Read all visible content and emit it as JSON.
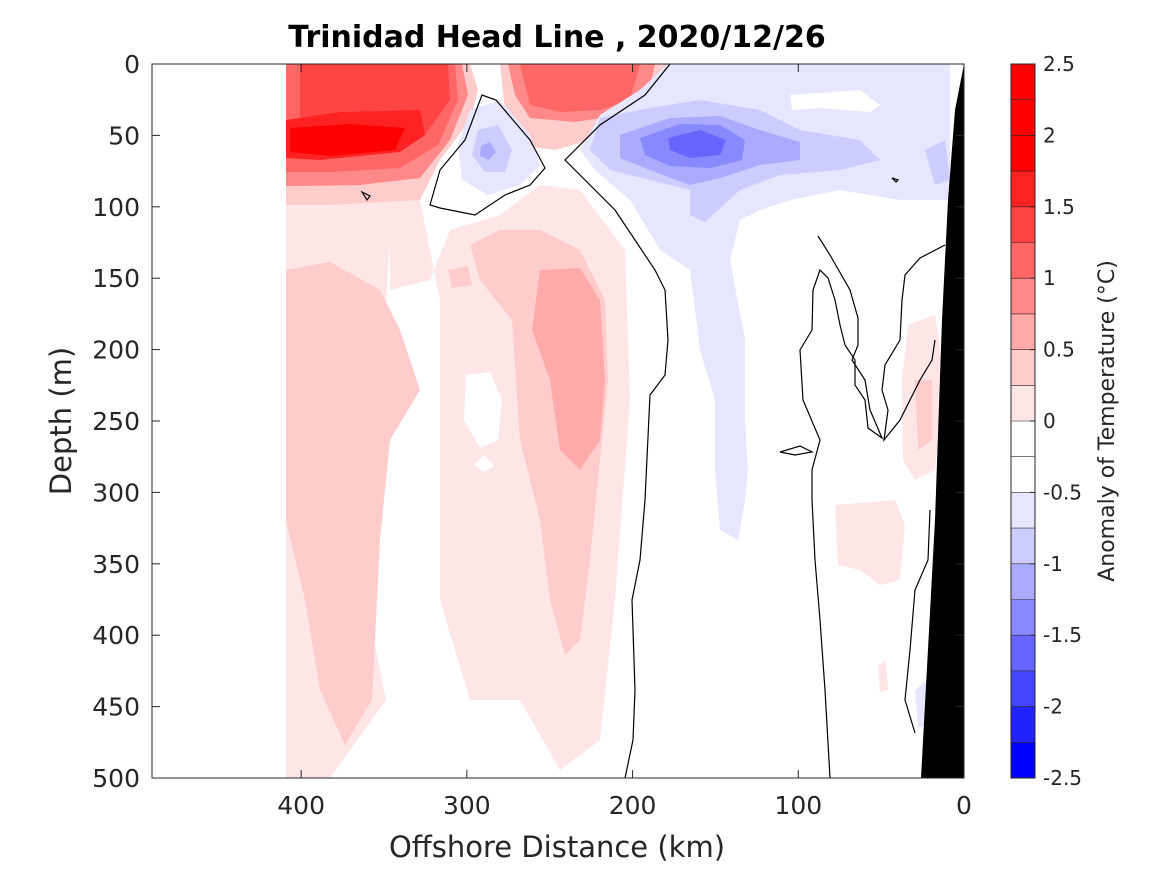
{
  "chart_data": {
    "type": "heatmap",
    "title": "Trinidad Head Line , 2020/12/26",
    "xlabel": "Offshore Distance (km)",
    "ylabel": "Depth (m)",
    "xlim": [
      490,
      0
    ],
    "ylim": [
      0,
      500
    ],
    "x_reversed": true,
    "y_reversed": true,
    "x_ticks": [
      400,
      300,
      200,
      100,
      0
    ],
    "y_ticks": [
      0,
      50,
      100,
      150,
      200,
      250,
      300,
      350,
      400,
      450,
      500
    ],
    "colorbar": {
      "label": "Anomaly of Temperature (°C)",
      "range": [
        -2.5,
        2.5
      ],
      "step": 0.25,
      "ticks": [
        2.5,
        2,
        1.5,
        1,
        0.5,
        0,
        -0.5,
        -1,
        -1.5,
        -2,
        -2.5
      ],
      "tick_labels": [
        "2.5",
        "2",
        "1.5",
        "1",
        "0.5",
        "0",
        "-0.5",
        "-1",
        "-1.5",
        "-2",
        "-2.5"
      ],
      "colors": [
        "#0000ff",
        "#2222ff",
        "#4444ff",
        "#6666ff",
        "#8888ff",
        "#aaaaff",
        "#ccccff",
        "#e6e6ff",
        "#ffffff",
        "#ffffff",
        "#ffe6e6",
        "#ffcccc",
        "#ffaaaa",
        "#ff8888",
        "#ff6666",
        "#ff4444",
        "#ff2222",
        "#ff0000",
        "#ff0000",
        "#ff0000"
      ]
    },
    "features": [
      {
        "name": "warm-core-surface",
        "x_range": [
          410,
          305
        ],
        "depth_range": [
          0,
          90
        ],
        "peak_anomaly": 2.25
      },
      {
        "name": "warm-patch-surface",
        "x_range": [
          270,
          200
        ],
        "depth_range": [
          0,
          45
        ],
        "peak_anomaly": 1.5
      },
      {
        "name": "cold-patch-small",
        "x_range": [
          310,
          265
        ],
        "depth_range": [
          30,
          85
        ],
        "peak_anomaly": -0.75
      },
      {
        "name": "cold-core",
        "x_range": [
          230,
          65
        ],
        "depth_range": [
          15,
          110
        ],
        "peak_anomaly": -1.5
      },
      {
        "name": "warm-deep-column-offshore",
        "x_range": [
          410,
          310
        ],
        "depth_range": [
          110,
          500
        ],
        "peak_anomaly": 0.75
      },
      {
        "name": "warm-deep-column-mid",
        "x_range": [
          300,
          205
        ],
        "depth_range": [
          90,
          490
        ],
        "peak_anomaly": 0.75
      },
      {
        "name": "cold-tongue",
        "x_range": [
          190,
          125
        ],
        "depth_range": [
          100,
          340
        ],
        "peak_anomaly": -0.5
      },
      {
        "name": "warm-patch-nearshore",
        "x_range": [
          75,
          40
        ],
        "depth_range": [
          300,
          360
        ],
        "peak_anomaly": 0.25
      }
    ],
    "zero_contour_label": "0 °C anomaly contour (black line)",
    "bathymetry": {
      "color": "#000000",
      "points": [
        [
          0,
          0
        ],
        [
          0,
          500
        ],
        [
          25,
          500
        ],
        [
          35,
          300
        ],
        [
          45,
          100
        ],
        [
          60,
          80
        ]
      ]
    }
  }
}
